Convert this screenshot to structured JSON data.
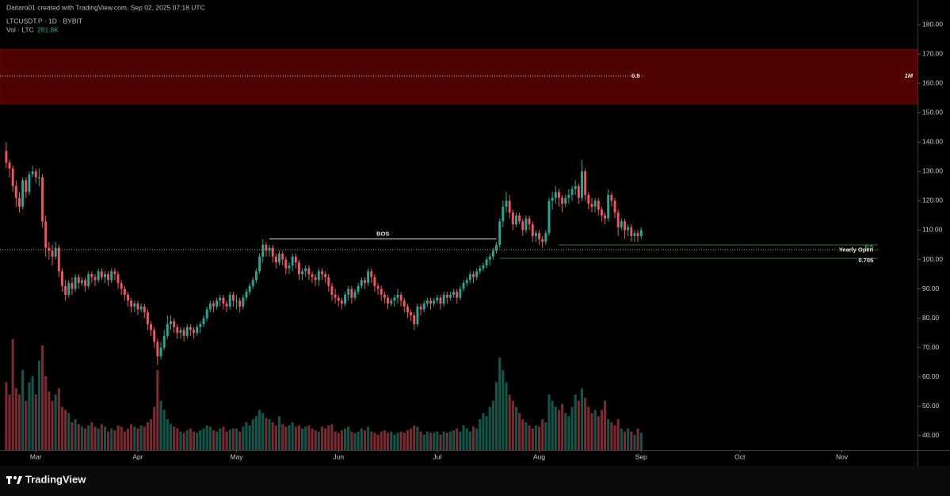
{
  "header": {
    "credit": "Daitaro01 created with TradingView.com, Sep 02, 2025 07:18 UTC",
    "symbol": "LTCUSDT.P · 1D · BYBIT",
    "volume_name": "Vol · LTC",
    "volume_last": "281.8K"
  },
  "footer": {
    "brand": "TradingView"
  },
  "chart_data": {
    "type": "candlestick",
    "up_color": "#22ab94",
    "down_color": "#f7525f",
    "xlim": [
      -1.9,
      277
    ],
    "ylim": [
      35.1,
      188.4
    ],
    "xticks": [
      {
        "value": 9,
        "label": "Mar"
      },
      {
        "value": 40,
        "label": "Apr"
      },
      {
        "value": 70,
        "label": "May"
      },
      {
        "value": 101,
        "label": "Jun"
      },
      {
        "value": 131,
        "label": "Jul"
      },
      {
        "value": 162,
        "label": "Aug"
      },
      {
        "value": 193,
        "label": "Sep"
      },
      {
        "value": 223,
        "label": "Oct"
      },
      {
        "value": 254,
        "label": "Nov"
      }
    ],
    "yticks": [
      {
        "value": 180,
        "label": "180.00"
      },
      {
        "value": 170,
        "label": "170.00"
      },
      {
        "value": 160,
        "label": "160.00"
      },
      {
        "value": 150,
        "label": "150.00"
      },
      {
        "value": 140,
        "label": "140.00"
      },
      {
        "value": 130,
        "label": "130.00"
      },
      {
        "value": 120,
        "label": "120.00"
      },
      {
        "value": 110,
        "label": "110.00"
      },
      {
        "value": 100,
        "label": "100.00"
      },
      {
        "value": 90,
        "label": "90.00"
      },
      {
        "value": 80,
        "label": "80.00"
      },
      {
        "value": 70,
        "label": "70.00"
      },
      {
        "value": 60,
        "label": "60.00"
      },
      {
        "value": 50,
        "label": "50.00"
      },
      {
        "value": 40,
        "label": "40.00"
      }
    ],
    "open": [
      137,
      133,
      131,
      125,
      121,
      118,
      127,
      123,
      129,
      130,
      128,
      128,
      113,
      104,
      103,
      101,
      104,
      96,
      91,
      88,
      92,
      90,
      94,
      92,
      93,
      91,
      95,
      94,
      93,
      96,
      94,
      95,
      93,
      96,
      95,
      92,
      90,
      88,
      86,
      84,
      85,
      83,
      84,
      82,
      78,
      76,
      72,
      67,
      70,
      74,
      78,
      79,
      77,
      75,
      76,
      74,
      77,
      76,
      75,
      77,
      78,
      80,
      83,
      85,
      84,
      86,
      87,
      85,
      84,
      88,
      86,
      86,
      84,
      87,
      89,
      91,
      93,
      96,
      101,
      105,
      103,
      104,
      101,
      99,
      102,
      100,
      97,
      98,
      101,
      99,
      95,
      96,
      97,
      95,
      94,
      93,
      96,
      95,
      94,
      91,
      88,
      87,
      86,
      85,
      88,
      90,
      87,
      89,
      91,
      93,
      92,
      96,
      94,
      91,
      90,
      88,
      87,
      85,
      86,
      87,
      88,
      86,
      84,
      82,
      81,
      78,
      84,
      83,
      85,
      86,
      85,
      86,
      87,
      85,
      88,
      87,
      88,
      89,
      87,
      90,
      92,
      93,
      95,
      94,
      96,
      97,
      98,
      100,
      101,
      103,
      105,
      113,
      118,
      120,
      116,
      112,
      115,
      113,
      110,
      114,
      112,
      108,
      109,
      107,
      106,
      109,
      120,
      121,
      123,
      121,
      119,
      121,
      122,
      124,
      125,
      121,
      130,
      122,
      119,
      118,
      120,
      117,
      115,
      114,
      122,
      120,
      116,
      111,
      113,
      110,
      111,
      108,
      109,
      108
    ],
    "high": [
      140,
      134,
      132,
      127,
      123,
      128,
      128,
      130,
      132,
      131,
      131,
      129,
      115,
      106,
      105,
      106,
      105,
      97,
      93,
      93,
      94,
      95,
      95,
      94,
      94,
      96,
      96,
      95,
      97,
      97,
      96,
      96,
      97,
      97,
      96,
      93,
      91,
      89,
      87,
      86,
      86,
      85,
      85,
      83,
      79,
      77,
      73,
      72,
      76,
      81,
      81,
      80,
      78,
      77,
      77,
      78,
      78,
      77,
      78,
      79,
      81,
      84,
      86,
      86,
      87,
      88,
      88,
      86,
      89,
      89,
      88,
      87,
      88,
      90,
      92,
      94,
      97,
      102,
      107,
      106,
      105,
      105,
      102,
      103,
      103,
      101,
      99,
      102,
      102,
      100,
      97,
      98,
      98,
      96,
      95,
      97,
      97,
      96,
      95,
      92,
      90,
      88,
      87,
      89,
      91,
      91,
      90,
      92,
      94,
      94,
      97,
      97,
      95,
      92,
      91,
      89,
      88,
      87,
      88,
      90,
      89,
      87,
      85,
      83,
      82,
      85,
      85,
      86,
      87,
      87,
      87,
      88,
      88,
      89,
      89,
      89,
      90,
      90,
      91,
      93,
      94,
      96,
      96,
      97,
      98,
      99,
      101,
      102,
      104,
      106,
      114,
      120,
      123,
      122,
      117,
      116,
      116,
      114,
      115,
      115,
      113,
      110,
      110,
      108,
      110,
      121,
      123,
      125,
      124,
      122,
      122,
      124,
      125,
      127,
      126,
      134,
      131,
      123,
      121,
      121,
      121,
      118,
      116,
      124,
      123,
      121,
      117,
      114,
      114,
      112,
      112,
      110,
      110,
      111
    ],
    "low": [
      131,
      128,
      123,
      118,
      116,
      117,
      121,
      122,
      128,
      126,
      125,
      111,
      101,
      100,
      98,
      100,
      94,
      89,
      86,
      87,
      88,
      89,
      90,
      91,
      89,
      90,
      92,
      91,
      92,
      93,
      92,
      91,
      92,
      93,
      90,
      88,
      86,
      84,
      82,
      82,
      81,
      82,
      80,
      76,
      74,
      70,
      64,
      66,
      69,
      73,
      76,
      75,
      73,
      73,
      72,
      73,
      74,
      73,
      74,
      75,
      77,
      79,
      82,
      82,
      83,
      84,
      83,
      82,
      83,
      84,
      83,
      82,
      83,
      86,
      88,
      90,
      92,
      95,
      99,
      101,
      101,
      99,
      97,
      98,
      98,
      95,
      95,
      96,
      97,
      93,
      93,
      94,
      93,
      92,
      91,
      91,
      93,
      92,
      89,
      86,
      85,
      84,
      83,
      84,
      86,
      85,
      86,
      88,
      90,
      90,
      91,
      92,
      89,
      88,
      86,
      85,
      83,
      84,
      84,
      85,
      84,
      82,
      80,
      79,
      76,
      77,
      81,
      82,
      84,
      83,
      84,
      85,
      83,
      84,
      85,
      86,
      87,
      85,
      86,
      89,
      91,
      92,
      92,
      93,
      95,
      96,
      97,
      98,
      100,
      102,
      104,
      111,
      116,
      114,
      110,
      111,
      112,
      108,
      109,
      110,
      106,
      106,
      105,
      104,
      105,
      108,
      117,
      119,
      118,
      116,
      118,
      119,
      120,
      122,
      119,
      120,
      120,
      117,
      116,
      116,
      115,
      113,
      112,
      113,
      118,
      114,
      108,
      110,
      107,
      108,
      106,
      106,
      106,
      107
    ],
    "close": [
      133,
      131,
      125,
      121,
      118,
      127,
      123,
      129,
      130,
      128,
      128,
      113,
      104,
      103,
      101,
      104,
      96,
      91,
      88,
      92,
      90,
      94,
      92,
      93,
      91,
      95,
      94,
      93,
      96,
      94,
      95,
      93,
      96,
      95,
      92,
      90,
      88,
      86,
      84,
      85,
      83,
      84,
      82,
      78,
      76,
      72,
      67,
      70,
      74,
      78,
      79,
      77,
      75,
      76,
      74,
      77,
      76,
      75,
      77,
      78,
      80,
      83,
      85,
      84,
      86,
      87,
      85,
      84,
      88,
      86,
      86,
      84,
      87,
      89,
      91,
      93,
      96,
      101,
      105,
      103,
      104,
      101,
      99,
      102,
      100,
      97,
      98,
      101,
      99,
      95,
      96,
      97,
      95,
      94,
      93,
      96,
      95,
      94,
      91,
      88,
      87,
      86,
      85,
      88,
      90,
      87,
      89,
      91,
      93,
      92,
      96,
      94,
      91,
      90,
      88,
      87,
      85,
      86,
      87,
      88,
      86,
      84,
      82,
      81,
      78,
      84,
      83,
      85,
      86,
      85,
      86,
      87,
      85,
      88,
      87,
      88,
      89,
      87,
      90,
      92,
      93,
      95,
      94,
      96,
      97,
      98,
      100,
      101,
      103,
      105,
      113,
      118,
      120,
      116,
      112,
      115,
      113,
      110,
      114,
      112,
      108,
      109,
      107,
      106,
      109,
      120,
      121,
      123,
      121,
      119,
      121,
      122,
      124,
      125,
      121,
      130,
      122,
      119,
      118,
      120,
      117,
      115,
      114,
      122,
      120,
      116,
      111,
      113,
      110,
      111,
      108,
      109,
      108,
      110
    ],
    "volume": [
      1100,
      900,
      1800,
      1000,
      900,
      1300,
      800,
      1100,
      1200,
      900,
      1450,
      1700,
      1200,
      950,
      800,
      900,
      1000,
      700,
      650,
      600,
      450,
      500,
      420,
      380,
      350,
      400,
      450,
      380,
      350,
      420,
      380,
      300,
      350,
      320,
      400,
      380,
      300,
      350,
      420,
      380,
      350,
      400,
      380,
      450,
      500,
      700,
      1300,
      800,
      650,
      500,
      420,
      380,
      350,
      300,
      280,
      320,
      350,
      300,
      280,
      320,
      350,
      400,
      380,
      320,
      300,
      350,
      380,
      300,
      330,
      350,
      350,
      300,
      380,
      450,
      400,
      500,
      550,
      650,
      600,
      520,
      500,
      450,
      400,
      550,
      420,
      380,
      400,
      450,
      380,
      400,
      350,
      380,
      400,
      350,
      320,
      300,
      380,
      350,
      400,
      420,
      300,
      280,
      320,
      350,
      380,
      300,
      280,
      300,
      350,
      320,
      380,
      300,
      280,
      250,
      300,
      320,
      280,
      300,
      250,
      280,
      300,
      280,
      320,
      350,
      400,
      380,
      300,
      250,
      300,
      280,
      280,
      300,
      250,
      300,
      280,
      300,
      320,
      350,
      300,
      400,
      350,
      300,
      380,
      350,
      500,
      600,
      550,
      700,
      800,
      1100,
      1500,
      1300,
      1100,
      900,
      800,
      700,
      600,
      500,
      450,
      400,
      350,
      400,
      380,
      500,
      450,
      900,
      800,
      700,
      650,
      750,
      600,
      550,
      700,
      900,
      800,
      1000,
      850,
      700,
      600,
      650,
      550,
      650,
      800,
      500,
      450,
      400,
      500,
      350,
      300,
      350,
      300,
      250,
      350,
      281.8
    ],
    "zone": {
      "low": 153,
      "high": 171.5,
      "color": "#4f0000"
    },
    "levels": [
      {
        "label": "0.5",
        "value": 162.5,
        "tag": "1M",
        "style": "dotted",
        "color": "#bbbbbb",
        "from": -1.9,
        "to": 194
      },
      {
        "label": "BOS",
        "value": 107,
        "style": "solid",
        "color": "#e0e0e0",
        "from": 80,
        "to": 149
      },
      {
        "label": "Yearly Open",
        "value": 103.3,
        "style": "dotted",
        "color": "#999999",
        "from": -1.9,
        "to": 265
      },
      {
        "label": "0.5",
        "value": 105,
        "style": "solid",
        "color": "#2e7d32",
        "from": 168,
        "to": 265
      },
      {
        "label": "0.705",
        "value": 100.4,
        "style": "solid",
        "color": "#2e7d32",
        "from": 150,
        "to": 265
      }
    ]
  }
}
